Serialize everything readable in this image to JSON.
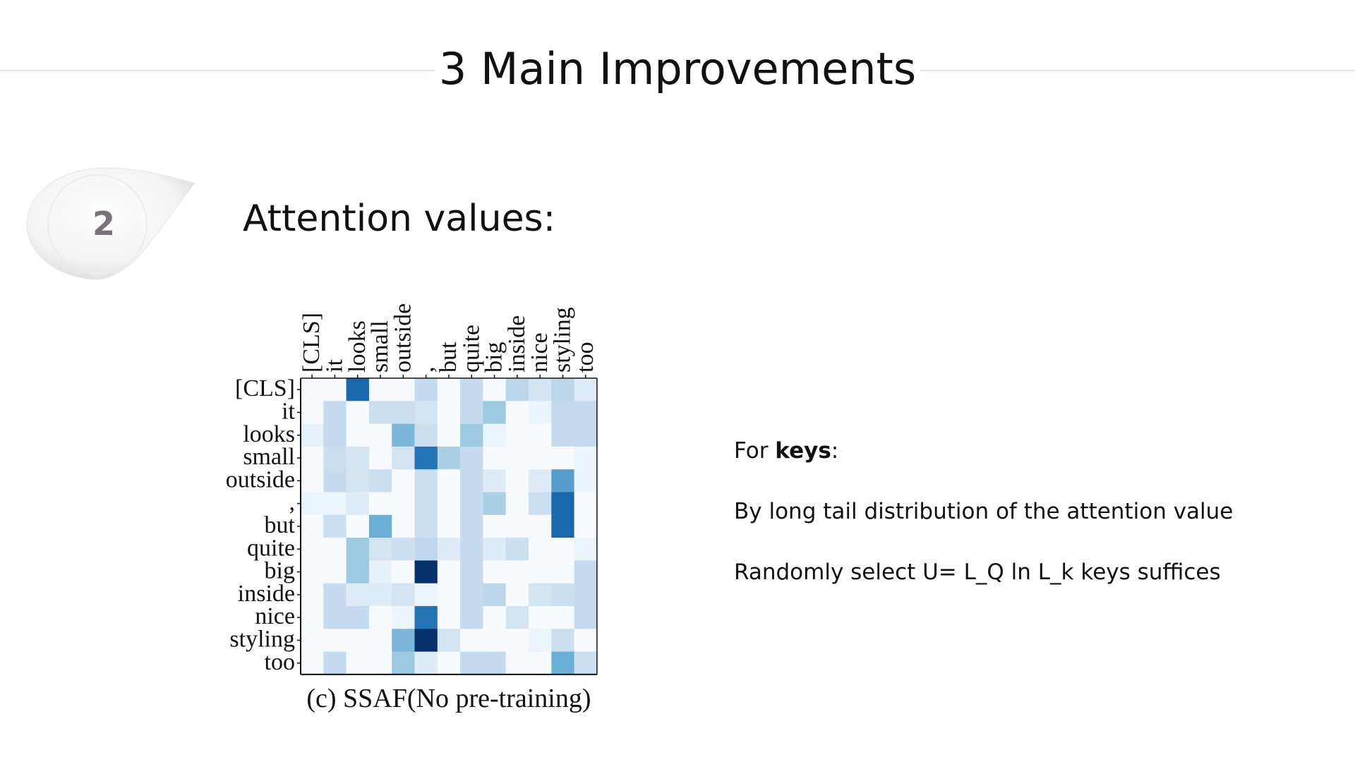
{
  "slide": {
    "title": "3 Main Improvements",
    "step_number": "2",
    "heading": "Attention values:"
  },
  "figure": {
    "caption": "(c) SSAF(No pre-training)",
    "tokens": [
      "[CLS]",
      "it",
      "looks",
      "small",
      "outside",
      ",",
      "but",
      "quite",
      "big",
      "inside",
      "nice",
      "styling",
      "too"
    ],
    "colormap": "Blues",
    "attention_matrix": [
      [
        0,
        0,
        0.85,
        0,
        0,
        0.25,
        0,
        0.25,
        0,
        0.3,
        0.18,
        0.3,
        0.12
      ],
      [
        0,
        0.25,
        0,
        0.22,
        0.22,
        0.18,
        0,
        0.25,
        0.45,
        0,
        0.05,
        0.25,
        0.25
      ],
      [
        0.08,
        0.25,
        0,
        0,
        0.55,
        0.22,
        0,
        0.45,
        0.05,
        0,
        0,
        0.25,
        0.25
      ],
      [
        0,
        0.22,
        0.18,
        0,
        0.18,
        0.8,
        0.38,
        0.25,
        0,
        0,
        0,
        0,
        0.05
      ],
      [
        0,
        0.25,
        0.18,
        0.22,
        0,
        0.22,
        0,
        0.25,
        0.12,
        0,
        0.12,
        0.65,
        0.05
      ],
      [
        0.05,
        0.05,
        0.12,
        0,
        0,
        0.22,
        0,
        0.25,
        0.38,
        0,
        0.22,
        0.85,
        0
      ],
      [
        0,
        0.22,
        0,
        0.6,
        0,
        0.22,
        0,
        0.25,
        0,
        0,
        0,
        0.85,
        0
      ],
      [
        0,
        0,
        0.45,
        0.18,
        0.22,
        0.28,
        0.12,
        0.25,
        0.12,
        0.22,
        0,
        0,
        0.05
      ],
      [
        0,
        0,
        0.45,
        0.08,
        0,
        1.0,
        0,
        0.25,
        0,
        0,
        0,
        0,
        0.25
      ],
      [
        0,
        0.25,
        0.12,
        0.12,
        0.18,
        0.05,
        0,
        0.25,
        0.3,
        0,
        0.18,
        0.22,
        0.25
      ],
      [
        0,
        0.25,
        0.25,
        0,
        0.05,
        0.8,
        0,
        0.25,
        0,
        0.18,
        0,
        0,
        0.25
      ],
      [
        0,
        0,
        0,
        0,
        0.55,
        1.0,
        0.18,
        0,
        0,
        0,
        0.05,
        0.22,
        0
      ],
      [
        0,
        0.25,
        0,
        0,
        0.45,
        0.12,
        0,
        0.25,
        0.25,
        0,
        0,
        0.6,
        0.22
      ]
    ]
  },
  "text": {
    "line1_prefix": "For ",
    "line1_bold": "keys",
    "line1_suffix": ":",
    "line2": "By long tail distribution of the attention value",
    "line3": "Randomly select U= L_Q ln L_k keys suffices"
  },
  "colors": {
    "title_rule": "#f1e3dc",
    "heatmap_low": "#f7fbff",
    "heatmap_high": "#08306b"
  }
}
